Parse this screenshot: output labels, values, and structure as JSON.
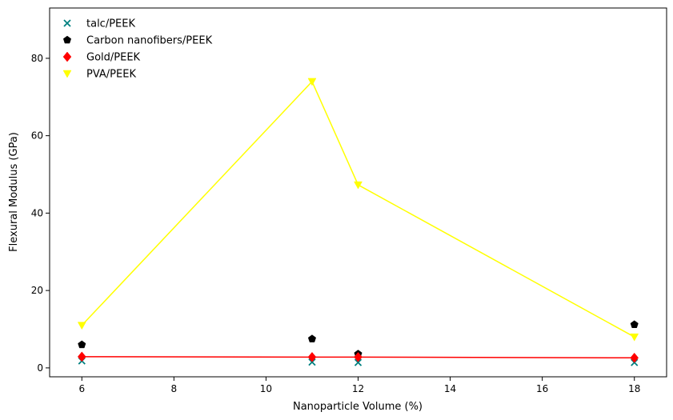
{
  "chart_data": {
    "type": "scatter",
    "title": "",
    "xlabel": "Nanoparticle Volume (%)",
    "ylabel": "Flexural Modulus (GPa)",
    "xlim": [
      5.3,
      18.7
    ],
    "ylim": [
      -2.3,
      93
    ],
    "xticks": [
      6,
      8,
      10,
      12,
      14,
      16,
      18
    ],
    "yticks": [
      0,
      20,
      40,
      60,
      80
    ],
    "grid": false,
    "legend_position": "top-left",
    "series": [
      {
        "name": "talc/PEEK",
        "marker": "x",
        "color": "#008080",
        "x": [
          6,
          11,
          12,
          18
        ],
        "y": [
          1.8,
          1.5,
          1.4,
          1.4
        ],
        "line": false
      },
      {
        "name": "Carbon nanofibers/PEEK",
        "marker": "pentagon",
        "color": "#000000",
        "x": [
          6,
          11,
          12,
          18
        ],
        "y": [
          6.0,
          7.5,
          3.6,
          11.2
        ],
        "line": false
      },
      {
        "name": "Gold/PEEK",
        "marker": "diamond",
        "color": "#ff0000",
        "x": [
          6,
          11,
          12,
          18
        ],
        "y": [
          2.9,
          2.8,
          2.8,
          2.6
        ],
        "line": true
      },
      {
        "name": "PVA/PEEK",
        "marker": "triangle-down",
        "color": "#ffff00",
        "x": [
          6,
          11,
          12,
          18
        ],
        "y": [
          11.0,
          74.0,
          47.3,
          8.0
        ],
        "line": true
      }
    ]
  }
}
